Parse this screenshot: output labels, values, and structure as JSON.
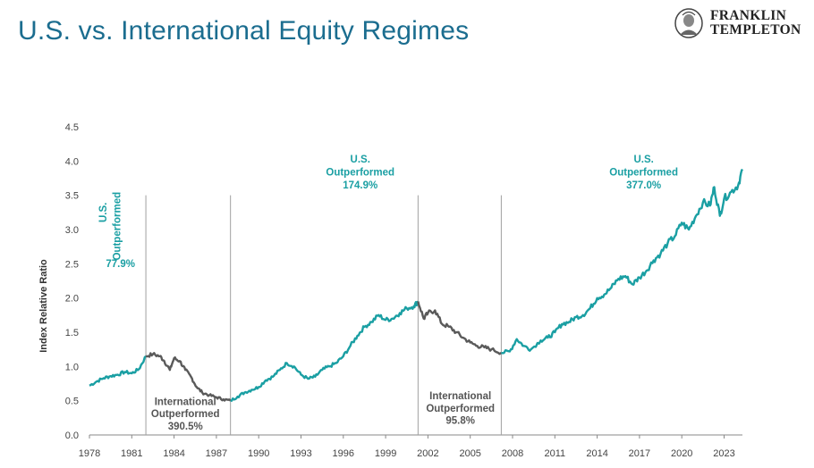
{
  "header": {
    "title": "U.S. vs. International Equity Regimes",
    "logo_line1": "FRANKLIN",
    "logo_line2": "TEMPLETON"
  },
  "colors": {
    "us": "#1a9fa3",
    "intl": "#5a5a5a",
    "axis": "#888888",
    "divider": "#a0a0a0",
    "title": "#1b6d8f",
    "label_us": "#1a9fa3",
    "label_intl": "#555555"
  },
  "chart_data": {
    "type": "line",
    "title": "U.S. vs. International Equity Regimes",
    "ylabel": "Index Relative Ratio",
    "xlabel": "",
    "ylim": [
      0,
      4.5
    ],
    "xlim": [
      1978,
      2024.3
    ],
    "y_ticks": [
      "0.0",
      "0.5",
      "1.0",
      "1.5",
      "2.0",
      "2.5",
      "3.0",
      "3.5",
      "4.0",
      "4.5"
    ],
    "x_ticks": [
      "1978",
      "1981",
      "1984",
      "1987",
      "1990",
      "1993",
      "1996",
      "1999",
      "2002",
      "2005",
      "2008",
      "2011",
      "2014",
      "2017",
      "2020",
      "2023"
    ],
    "regime_dividers": [
      1982.0,
      1988.0,
      2001.3,
      2007.2
    ],
    "series": [
      {
        "name": "Index Relative Ratio",
        "x": [
          1978.0,
          1978.5,
          1979.0,
          1979.5,
          1980.0,
          1980.5,
          1981.0,
          1981.5,
          1982.0,
          1982.5,
          1983.0,
          1983.3,
          1983.7,
          1984.0,
          1984.4,
          1984.8,
          1985.2,
          1985.6,
          1986.0,
          1986.5,
          1987.0,
          1987.5,
          1988.0,
          1988.5,
          1989.0,
          1989.5,
          1990.0,
          1990.5,
          1991.0,
          1991.5,
          1992.0,
          1992.5,
          1993.0,
          1993.5,
          1994.0,
          1994.5,
          1995.0,
          1995.5,
          1996.0,
          1996.5,
          1997.0,
          1997.5,
          1998.0,
          1998.5,
          1999.0,
          1999.5,
          2000.0,
          2000.5,
          2001.0,
          2001.3,
          2001.7,
          2002.0,
          2002.5,
          2003.0,
          2003.5,
          2004.0,
          2004.5,
          2005.0,
          2005.5,
          2006.0,
          2006.5,
          2007.2,
          2007.8,
          2008.3,
          2008.8,
          2009.3,
          2010.0,
          2010.5,
          2011.0,
          2011.5,
          2012.0,
          2012.5,
          2013.0,
          2013.5,
          2014.0,
          2014.5,
          2015.0,
          2015.5,
          2016.0,
          2016.5,
          2017.0,
          2017.5,
          2018.0,
          2018.5,
          2019.0,
          2019.5,
          2020.0,
          2020.5,
          2021.0,
          2021.5,
          2022.0,
          2022.3,
          2022.7,
          2023.0,
          2023.5,
          2024.0,
          2024.3
        ],
        "y": [
          0.72,
          0.78,
          0.83,
          0.86,
          0.88,
          0.92,
          0.9,
          0.96,
          1.15,
          1.18,
          1.15,
          1.08,
          0.95,
          1.12,
          1.08,
          0.95,
          0.85,
          0.7,
          0.62,
          0.58,
          0.55,
          0.52,
          0.5,
          0.56,
          0.62,
          0.66,
          0.7,
          0.8,
          0.85,
          0.95,
          1.05,
          1.0,
          0.88,
          0.82,
          0.85,
          0.95,
          1.0,
          1.05,
          1.15,
          1.3,
          1.45,
          1.58,
          1.65,
          1.75,
          1.68,
          1.7,
          1.78,
          1.85,
          1.88,
          1.95,
          1.7,
          1.78,
          1.82,
          1.62,
          1.58,
          1.5,
          1.42,
          1.35,
          1.3,
          1.28,
          1.25,
          1.2,
          1.22,
          1.4,
          1.3,
          1.25,
          1.38,
          1.42,
          1.5,
          1.62,
          1.65,
          1.72,
          1.75,
          1.85,
          2.0,
          2.05,
          2.15,
          2.28,
          2.32,
          2.2,
          2.3,
          2.4,
          2.55,
          2.65,
          2.8,
          2.9,
          3.1,
          3.0,
          3.2,
          3.4,
          3.35,
          3.62,
          3.2,
          3.45,
          3.55,
          3.65,
          3.88
        ]
      }
    ],
    "annotations": [
      {
        "id": "us1-line1",
        "text": "U.S.",
        "x": 1979.2,
        "y": 3.25,
        "rotate": -90,
        "regime": "us"
      },
      {
        "id": "us1-line2",
        "text": "Outperformed",
        "x": 1980.2,
        "y": 3.05,
        "rotate": -90,
        "regime": "us"
      },
      {
        "id": "us1-pct",
        "text": "77.9%",
        "x": 1980.2,
        "y": 2.45,
        "regime": "us"
      },
      {
        "id": "intl1-line1",
        "text": "International",
        "x": 1984.8,
        "y": 0.44,
        "regime": "intl"
      },
      {
        "id": "intl1-line2",
        "text": "Outperformed",
        "x": 1984.8,
        "y": 0.26,
        "regime": "intl"
      },
      {
        "id": "intl1-pct",
        "text": "390.5%",
        "x": 1984.8,
        "y": 0.08,
        "regime": "intl"
      },
      {
        "id": "us2-line1",
        "text": "U.S.",
        "x": 1997.2,
        "y": 3.98,
        "regime": "us"
      },
      {
        "id": "us2-line2",
        "text": "Outperformed",
        "x": 1997.2,
        "y": 3.79,
        "regime": "us"
      },
      {
        "id": "us2-pct",
        "text": "174.9%",
        "x": 1997.2,
        "y": 3.6,
        "regime": "us"
      },
      {
        "id": "intl2-line1",
        "text": "International",
        "x": 2004.3,
        "y": 0.52,
        "regime": "intl"
      },
      {
        "id": "intl2-line2",
        "text": "Outperformed",
        "x": 2004.3,
        "y": 0.34,
        "regime": "intl"
      },
      {
        "id": "intl2-pct",
        "text": "95.8%",
        "x": 2004.3,
        "y": 0.16,
        "regime": "intl"
      },
      {
        "id": "us3-line1",
        "text": "U.S.",
        "x": 2017.3,
        "y": 3.98,
        "regime": "us"
      },
      {
        "id": "us3-line2",
        "text": "Outperformed",
        "x": 2017.3,
        "y": 3.79,
        "regime": "us"
      },
      {
        "id": "us3-pct",
        "text": "377.0%",
        "x": 2017.3,
        "y": 3.6,
        "regime": "us"
      }
    ]
  }
}
